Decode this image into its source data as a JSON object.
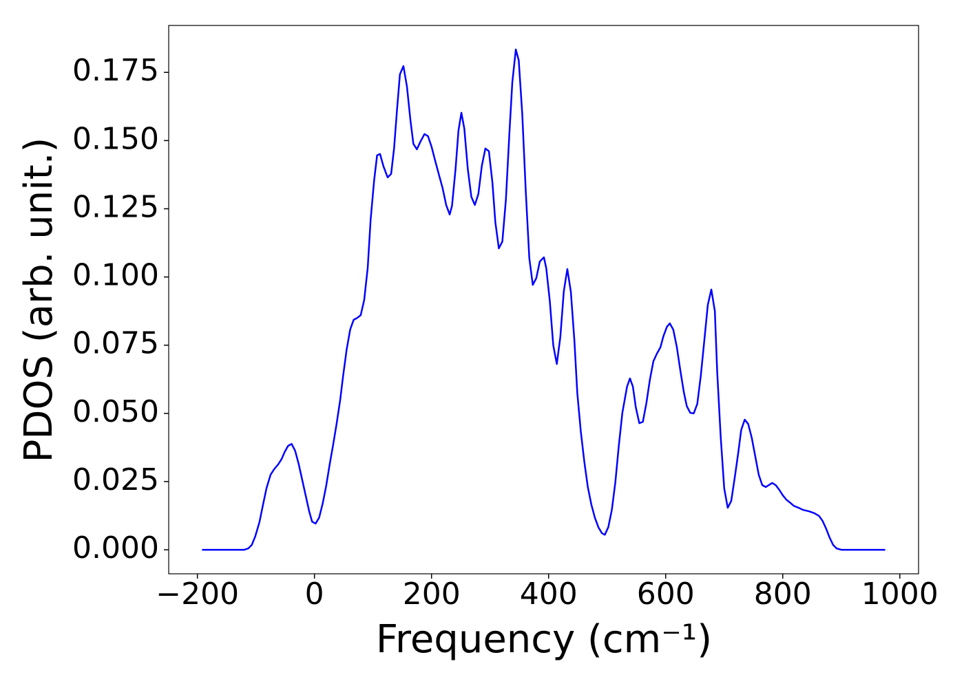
{
  "chart_data": {
    "type": "line",
    "x_label": "Frequency (cm⁻¹)",
    "y_label": "PDOS (arb. unit.)",
    "xlim": [
      -249,
      1032
    ],
    "ylim": [
      -0.0088,
      0.1922
    ],
    "xticks": [
      {
        "value": -200,
        "label": "−200"
      },
      0,
      200,
      400,
      600,
      800,
      1000
    ],
    "yticks": [
      {
        "value": 0,
        "label": "0.000"
      },
      {
        "value": 0.025,
        "label": "0.025"
      },
      {
        "value": 0.05,
        "label": "0.050"
      },
      {
        "value": 0.075,
        "label": "0.075"
      },
      {
        "value": 0.1,
        "label": "0.100"
      },
      {
        "value": 0.125,
        "label": "0.125"
      },
      {
        "value": 0.15,
        "label": "0.150"
      },
      {
        "value": 0.175,
        "label": "0.175"
      }
    ],
    "x": [
      -192,
      -120,
      -113,
      -107,
      -101,
      -94,
      -88,
      -82,
      -75,
      -69,
      -62,
      -56,
      -51,
      -45,
      -39,
      -33,
      -27,
      -21,
      -15,
      -9,
      -4,
      2,
      8,
      14,
      20,
      26,
      32,
      38,
      44,
      49,
      55,
      61,
      67,
      73,
      79,
      85,
      91,
      96,
      102,
      107,
      112,
      118,
      125,
      131,
      136,
      141,
      146,
      152,
      158,
      164,
      169,
      175,
      181,
      188,
      194,
      200,
      206,
      212,
      219,
      225,
      231,
      235,
      241,
      246,
      251,
      256,
      262,
      268,
      274,
      280,
      286,
      292,
      298,
      304,
      309,
      315,
      321,
      327,
      333,
      338,
      344,
      349,
      355,
      361,
      367,
      373,
      379,
      385,
      392,
      396,
      402,
      408,
      414,
      420,
      426,
      432,
      438,
      444,
      449,
      455,
      461,
      467,
      473,
      479,
      485,
      491,
      496,
      502,
      508,
      514,
      520,
      526,
      534,
      539,
      544,
      549,
      555,
      561,
      567,
      573,
      579,
      585,
      591,
      596,
      602,
      607,
      613,
      619,
      625,
      631,
      636,
      642,
      648,
      654,
      660,
      666,
      672,
      678,
      684,
      688,
      694,
      700,
      706,
      712,
      718,
      724,
      729,
      735,
      741,
      747,
      753,
      759,
      765,
      771,
      776,
      782,
      788,
      794,
      800,
      806,
      813,
      819,
      827,
      835,
      845,
      854,
      862,
      868,
      874,
      880,
      886,
      892,
      900,
      975
    ],
    "series": [
      {
        "color": "#0000ff",
        "values": [
          0,
          0,
          0.0005,
          0.0018,
          0.005,
          0.0101,
          0.0164,
          0.0225,
          0.0275,
          0.0295,
          0.0313,
          0.0333,
          0.0358,
          0.0381,
          0.0388,
          0.0363,
          0.0315,
          0.0257,
          0.0199,
          0.0141,
          0.0103,
          0.0096,
          0.0118,
          0.0169,
          0.0234,
          0.0313,
          0.0386,
          0.0464,
          0.055,
          0.0638,
          0.0734,
          0.0807,
          0.0843,
          0.085,
          0.086,
          0.0916,
          0.1034,
          0.1211,
          0.1355,
          0.1446,
          0.1451,
          0.1405,
          0.1365,
          0.1378,
          0.1471,
          0.1612,
          0.1743,
          0.1773,
          0.1698,
          0.1574,
          0.1488,
          0.1468,
          0.1496,
          0.1524,
          0.1516,
          0.1478,
          0.1428,
          0.138,
          0.1325,
          0.1264,
          0.1229,
          0.1261,
          0.1395,
          0.1536,
          0.1602,
          0.1544,
          0.1395,
          0.1294,
          0.1264,
          0.1304,
          0.1408,
          0.1471,
          0.1461,
          0.1347,
          0.1201,
          0.1105,
          0.113,
          0.1282,
          0.1526,
          0.1713,
          0.1834,
          0.1794,
          0.1597,
          0.1314,
          0.107,
          0.0971,
          0.0996,
          0.1057,
          0.1072,
          0.1032,
          0.0913,
          0.0749,
          0.0681,
          0.0779,
          0.0948,
          0.1029,
          0.0946,
          0.0769,
          0.0575,
          0.0434,
          0.0323,
          0.023,
          0.0166,
          0.0118,
          0.0083,
          0.0061,
          0.0055,
          0.0083,
          0.0146,
          0.0247,
          0.0383,
          0.0502,
          0.0598,
          0.0628,
          0.0598,
          0.0522,
          0.0464,
          0.0469,
          0.0537,
          0.0623,
          0.0691,
          0.0719,
          0.0742,
          0.0782,
          0.0817,
          0.083,
          0.0807,
          0.0744,
          0.0658,
          0.0578,
          0.0527,
          0.0502,
          0.05,
          0.0535,
          0.0638,
          0.0767,
          0.0898,
          0.0954,
          0.0875,
          0.0653,
          0.0414,
          0.0225,
          0.0154,
          0.0179,
          0.0265,
          0.0356,
          0.0439,
          0.0477,
          0.0461,
          0.0411,
          0.0343,
          0.0275,
          0.0237,
          0.023,
          0.0237,
          0.0245,
          0.0237,
          0.022,
          0.02,
          0.0184,
          0.0172,
          0.0161,
          0.0154,
          0.0146,
          0.0141,
          0.0134,
          0.0124,
          0.0106,
          0.0078,
          0.0045,
          0.0018,
          0.0005,
          0,
          0
        ]
      }
    ]
  }
}
